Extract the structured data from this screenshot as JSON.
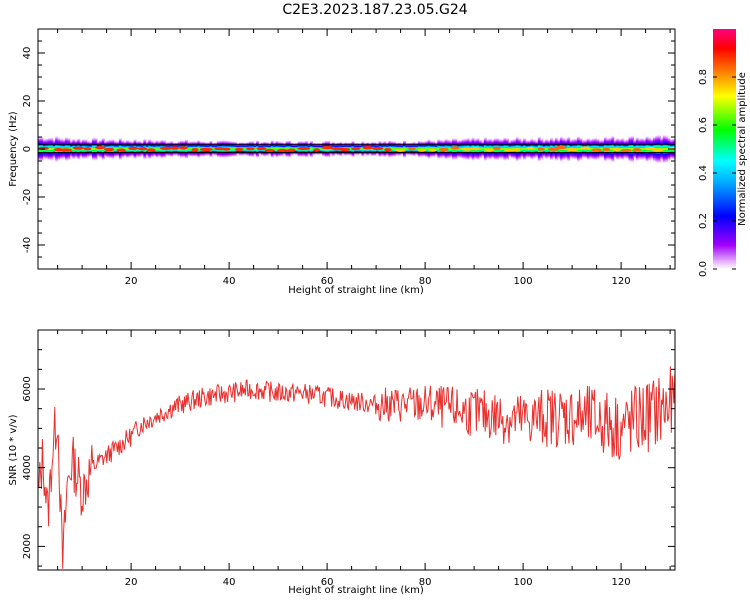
{
  "title": "C2E3.2023.187.23.05.G24",
  "chart_data": [
    {
      "type": "heatmap",
      "xlabel": "Height of straight line (km)",
      "ylabel": "Frequency (Hz)",
      "xlim": [
        1,
        131
      ],
      "ylim": [
        -50,
        50
      ],
      "xticks": [
        20,
        40,
        60,
        80,
        100,
        120
      ],
      "yticks": [
        -40,
        -20,
        0,
        20,
        40
      ],
      "grid": false,
      "colorbar": {
        "label": "Normalized spectral amplitude",
        "range": [
          0,
          1
        ],
        "ticks": [
          "0.0",
          "0.2",
          "0.4",
          "0.6",
          "0.8"
        ],
        "colormap": [
          "#ff00ff",
          "#8000ff",
          "#0000ff",
          "#00ffff",
          "#00ff00",
          "#ffff00",
          "#ff8000",
          "#ff0000",
          "#ff0080"
        ]
      },
      "band": {
        "center_hz": 0,
        "description_points": [
          {
            "x": 1,
            "halfwidth_hz": 5
          },
          {
            "x": 10,
            "halfwidth_hz": 4
          },
          {
            "x": 40,
            "halfwidth_hz": 3
          },
          {
            "x": 74,
            "halfwidth_hz": 3
          },
          {
            "x": 90,
            "halfwidth_hz": 4
          },
          {
            "x": 131,
            "halfwidth_hz": 5
          }
        ],
        "reference_lines_hz": [
          -1.5,
          2
        ]
      }
    },
    {
      "type": "line",
      "xlabel": "Height of straight line (km)",
      "ylabel": "SNR (10 * v/v)",
      "xlim": [
        1,
        131
      ],
      "ylim": [
        1400,
        7500
      ],
      "xticks": [
        20,
        40,
        60,
        80,
        100,
        120
      ],
      "yticks": [
        2000,
        4000,
        6000
      ],
      "color": "#e8302e",
      "series": [
        {
          "x": [
            1,
            2,
            3,
            4,
            5,
            6,
            7,
            8,
            10,
            12,
            15,
            18,
            20,
            22,
            25,
            28,
            30,
            35,
            40,
            45,
            50,
            55,
            60,
            65,
            70,
            75,
            80,
            85,
            90,
            95,
            100,
            105,
            110,
            115,
            120,
            125,
            131
          ],
          "values": [
            3200,
            4300,
            2800,
            4500,
            5400,
            1500,
            3600,
            4200,
            3400,
            4000,
            4300,
            4600,
            4800,
            5100,
            5300,
            5500,
            5600,
            5800,
            5900,
            6000,
            5900,
            5900,
            5800,
            5700,
            5600,
            5600,
            5600,
            5500,
            5400,
            5300,
            5200,
            5300,
            5300,
            5200,
            5000,
            5300,
            5600
          ]
        }
      ]
    }
  ]
}
